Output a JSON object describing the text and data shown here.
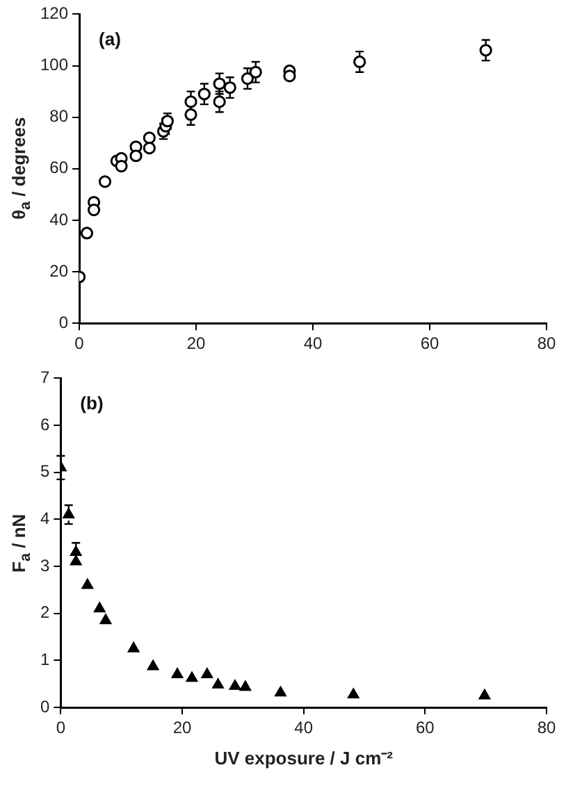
{
  "chart_data": [
    {
      "type": "scatter",
      "ylabel": "θ$_{a}$ / degrees",
      "annotations": [
        "(a)"
      ],
      "marker": "circle",
      "grid": false,
      "legend": false,
      "xlim": [
        0,
        80
      ],
      "xticks": [
        0,
        20,
        40,
        60,
        80
      ],
      "ylim": [
        0,
        120
      ],
      "yticks": [
        0,
        20,
        40,
        60,
        80,
        100,
        120
      ],
      "series": [
        {
          "color": "#000000",
          "x": [
            0,
            1.3,
            2.5,
            2.5,
            4.4,
            6.4,
            7.2,
            7.2,
            9.7,
            9.7,
            12,
            12,
            14.4,
            14.8,
            15.1,
            19.1,
            19.1,
            21.4,
            24,
            24,
            25.8,
            28.8,
            30.2,
            36,
            36,
            48,
            69.6
          ],
          "values": [
            18,
            35,
            47,
            44,
            55,
            63,
            64,
            61,
            68.5,
            65,
            72,
            68,
            74.5,
            76.5,
            78.5,
            86,
            81,
            89,
            93,
            86,
            91.5,
            95,
            97.5,
            98,
            96,
            101.5,
            106
          ],
          "errors": [
            null,
            null,
            null,
            null,
            null,
            null,
            null,
            null,
            null,
            null,
            null,
            null,
            3,
            3,
            3,
            4,
            4,
            4,
            4,
            4,
            4,
            4,
            4,
            null,
            null,
            4,
            4
          ]
        }
      ]
    },
    {
      "type": "scatter",
      "xlabel": "UV exposure / J cm⁻²",
      "ylabel": "F$_{a}$ / nN",
      "annotations": [
        "(b)"
      ],
      "marker": "triangle",
      "grid": false,
      "legend": false,
      "xlim": [
        0,
        80
      ],
      "xticks": [
        0,
        20,
        40,
        60,
        80
      ],
      "ylim": [
        0,
        7
      ],
      "yticks": [
        0,
        1,
        2,
        3,
        4,
        5,
        6,
        7
      ],
      "series": [
        {
          "color": "#000000",
          "x": [
            0,
            1.3,
            2.5,
            2.5,
            4.4,
            6.4,
            7.4,
            12,
            15.2,
            19.2,
            21.6,
            24.1,
            25.9,
            28.7,
            30.4,
            36.2,
            48.2,
            69.8
          ],
          "values": [
            5.1,
            4.1,
            3.3,
            3.1,
            2.6,
            2.1,
            1.85,
            1.25,
            0.87,
            0.7,
            0.62,
            0.7,
            0.48,
            0.45,
            0.43,
            0.31,
            0.27,
            0.25
          ],
          "errors": [
            0.25,
            0.2,
            0.2,
            null,
            null,
            null,
            null,
            null,
            null,
            null,
            null,
            null,
            null,
            null,
            null,
            null,
            null,
            null
          ]
        }
      ]
    }
  ]
}
